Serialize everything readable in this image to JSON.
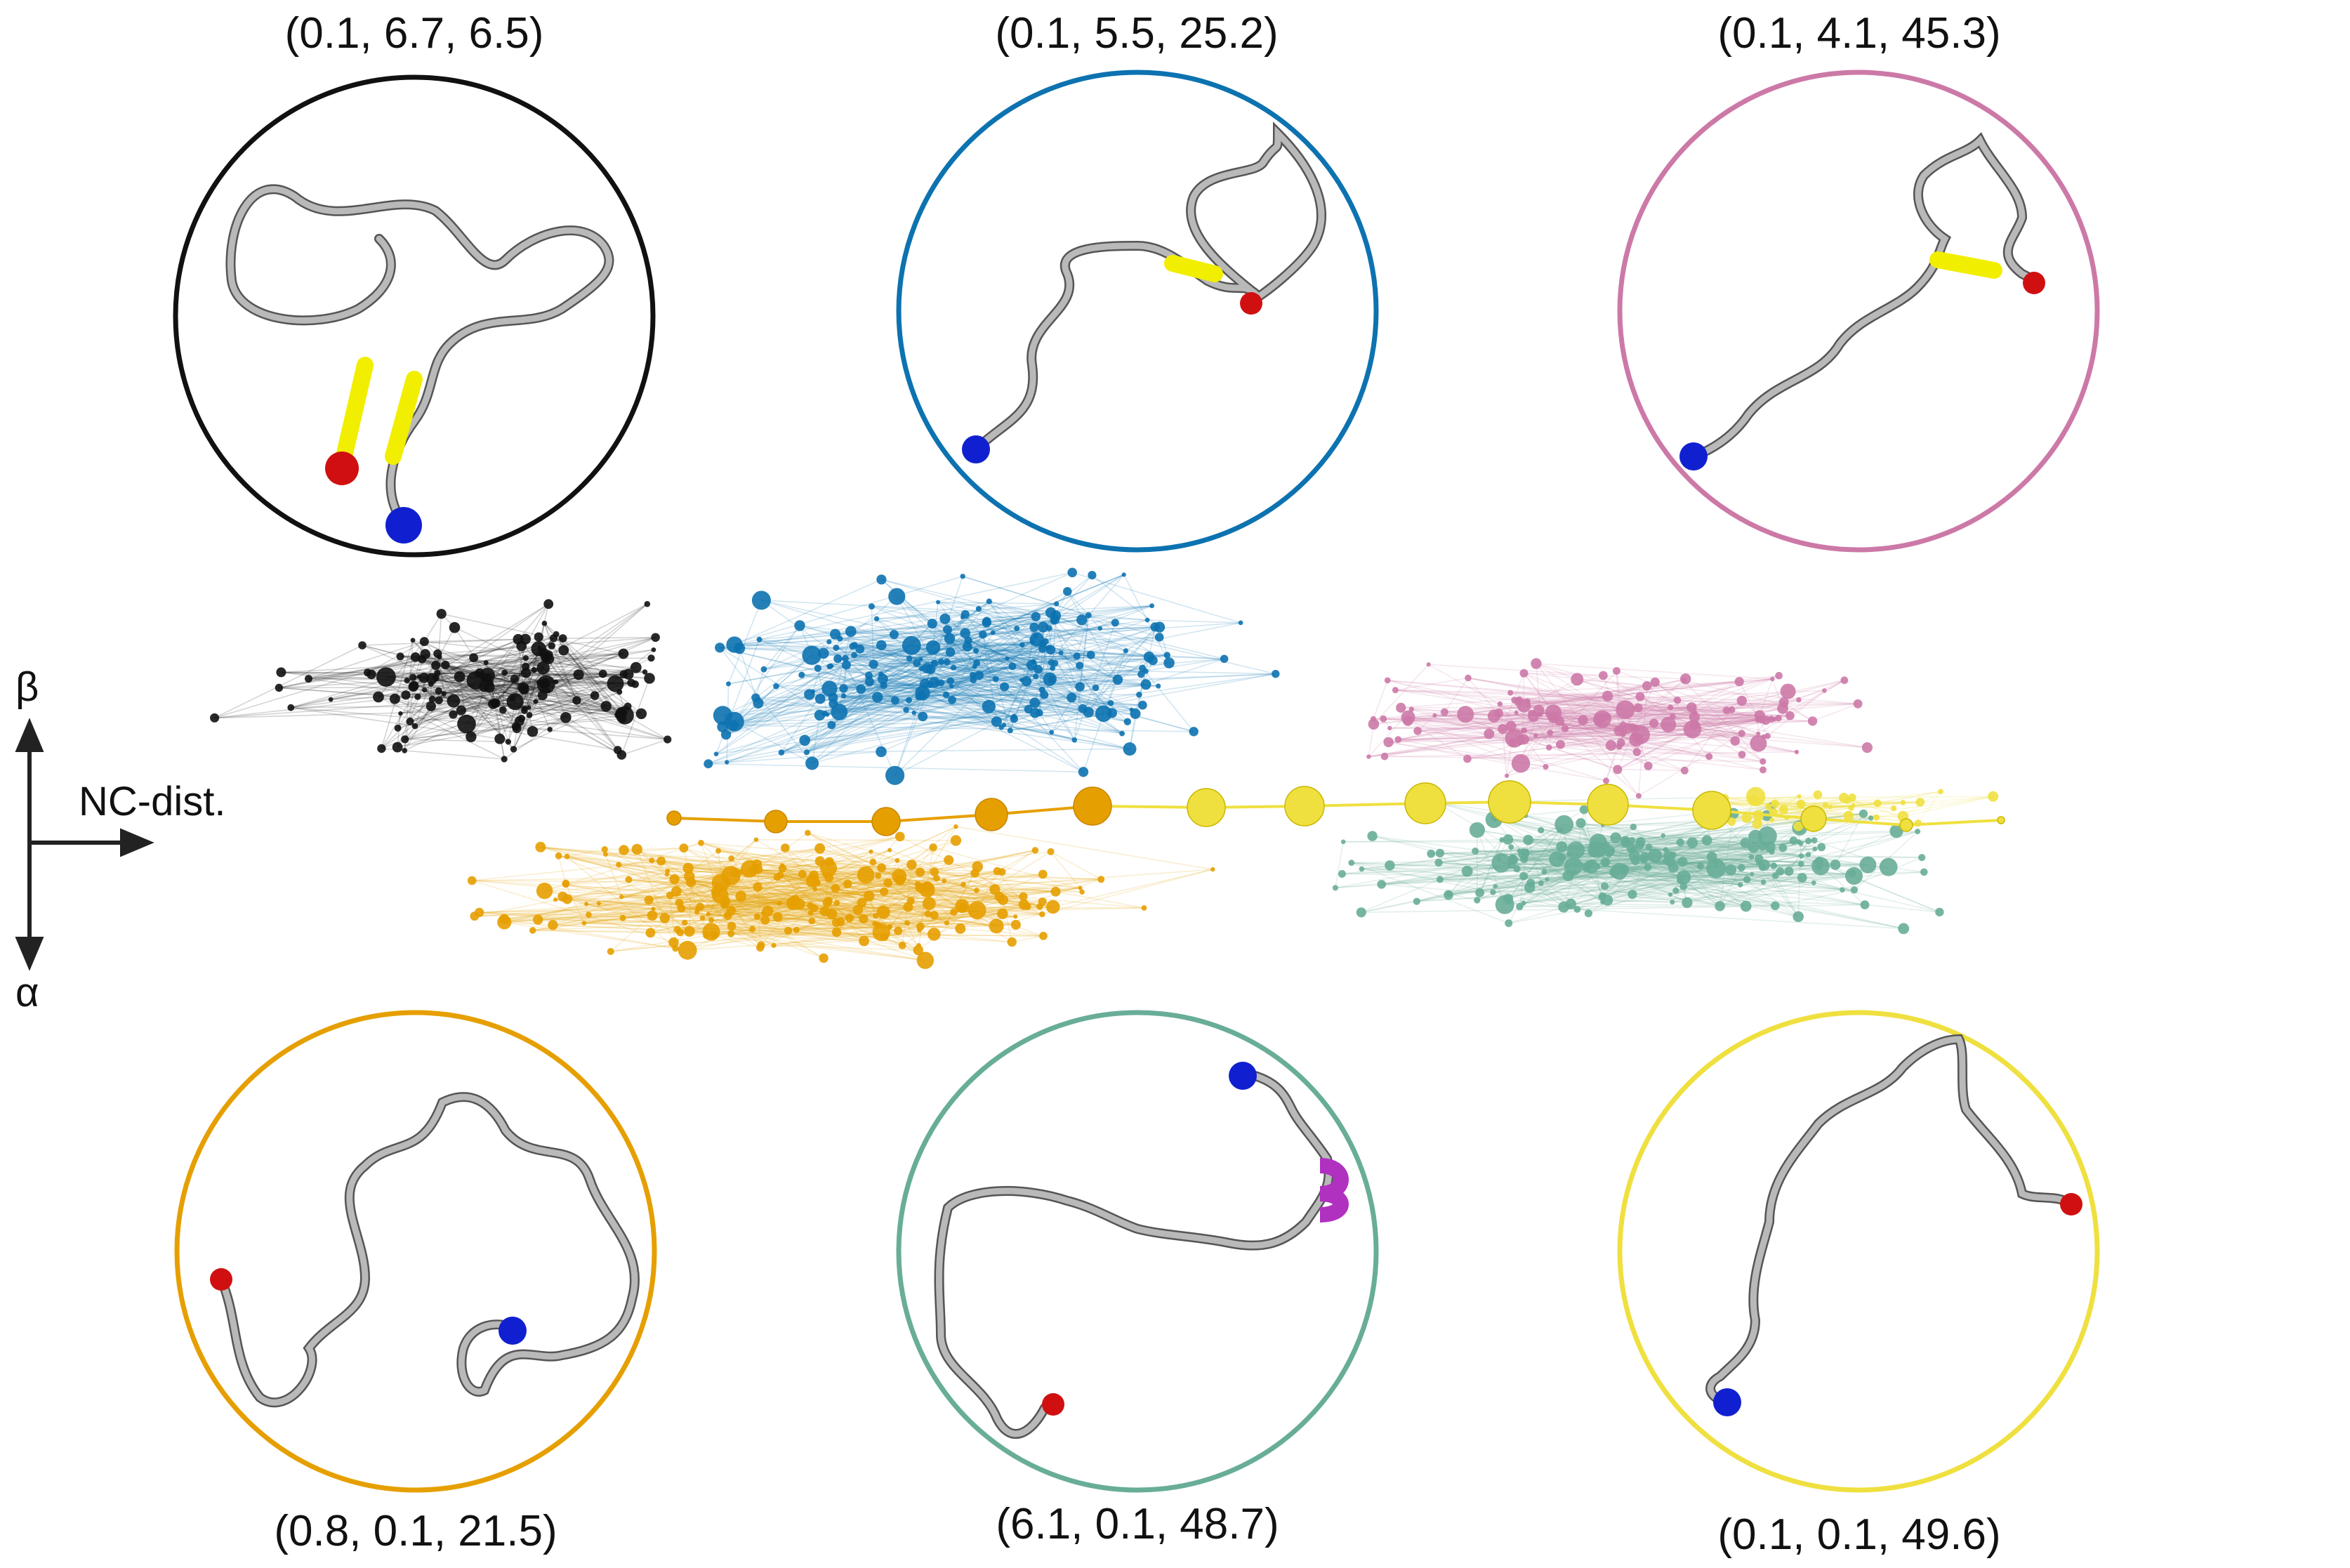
{
  "axes": {
    "up_label": "β",
    "down_label": "α",
    "right_label": "NC-dist."
  },
  "colors": {
    "black": "#111111",
    "blue": "#1f7ab8",
    "pink": "#c97aa7",
    "orange": "#e69f00",
    "green": "#1f9e78",
    "yellow": "#f0e040",
    "helix_purple": "#b030c0",
    "coil_cyan": "#3ab8c0",
    "strand_yellow": "#f5f000",
    "n_term_blue": "#1020d0",
    "c_term_red": "#d01010"
  },
  "clusters": [
    {
      "id": "black",
      "label": "(0.1, 6.7, 6.5)",
      "color": "#111111"
    },
    {
      "id": "blue",
      "label": "(0.1, 5.5, 25.2)",
      "color": "#0d72b0"
    },
    {
      "id": "pink",
      "label": "(0.1, 4.1, 45.3)",
      "color": "#cc79a7"
    },
    {
      "id": "orange",
      "label": "(0.8, 0.1, 21.5)",
      "color": "#e69f00"
    },
    {
      "id": "green",
      "label": "(6.1, 0.1, 48.7)",
      "color": "#68ad98"
    },
    {
      "id": "yellow",
      "label": "(0.1, 0.1, 49.6)",
      "color": "#efe040"
    }
  ]
}
